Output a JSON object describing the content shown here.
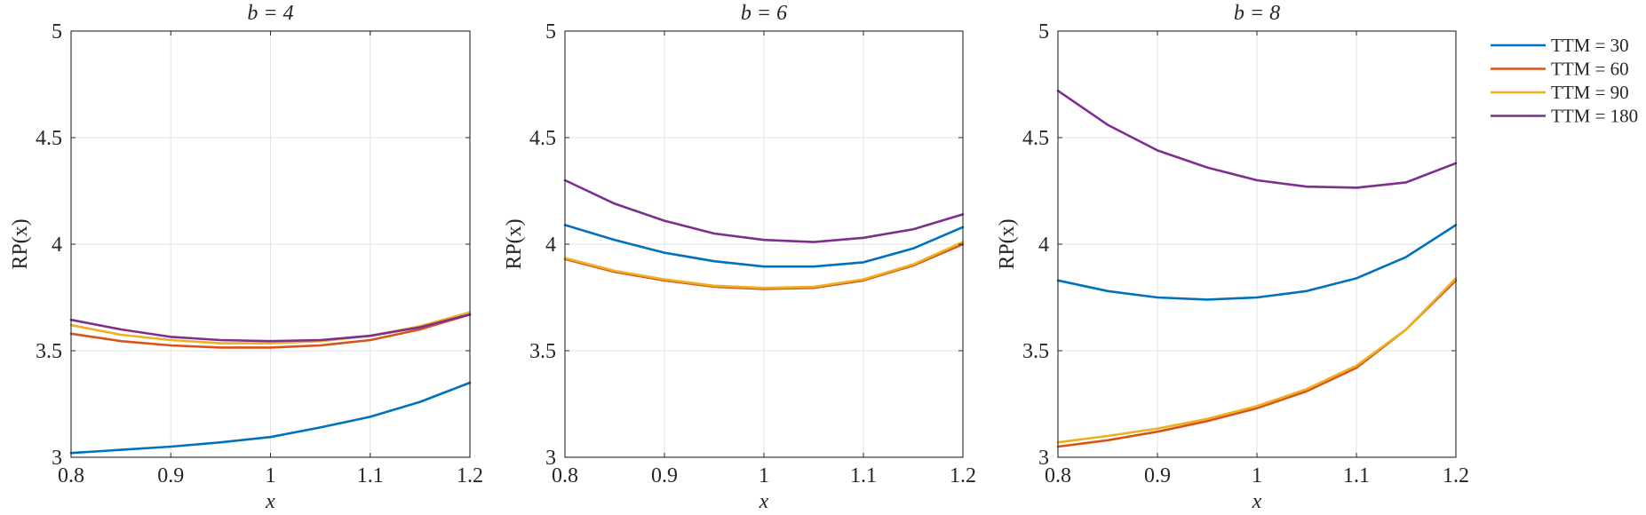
{
  "legend": {
    "entries": [
      {
        "label": "TTM = 30",
        "color": "#0072BD"
      },
      {
        "label": "TTM = 60",
        "color": "#D95319"
      },
      {
        "label": "TTM = 90",
        "color": "#EDB120"
      },
      {
        "label": "TTM = 180",
        "color": "#7E2F8E"
      }
    ],
    "placement": "outside-right-top"
  },
  "chart_data": [
    {
      "type": "line",
      "title": "b = 4",
      "xlabel": "x",
      "ylabel": "RP(x)",
      "xlim": [
        0.8,
        1.2
      ],
      "ylim": [
        3,
        5
      ],
      "xticks": [
        "0.8",
        "0.9",
        "1",
        "1.1",
        "1.2"
      ],
      "yticks": [
        "3",
        "3.5",
        "4",
        "4.5",
        "5"
      ],
      "grid": true,
      "x": [
        0.8,
        0.85,
        0.9,
        0.95,
        1.0,
        1.05,
        1.1,
        1.15,
        1.2
      ],
      "series": [
        {
          "name": "TTM = 30",
          "color": "#0072BD",
          "values": [
            3.02,
            3.035,
            3.05,
            3.07,
            3.095,
            3.14,
            3.19,
            3.26,
            3.35
          ]
        },
        {
          "name": "TTM = 60",
          "color": "#D95319",
          "values": [
            3.58,
            3.545,
            3.525,
            3.515,
            3.515,
            3.525,
            3.55,
            3.6,
            3.67
          ]
        },
        {
          "name": "TTM = 90",
          "color": "#EDB120",
          "values": [
            3.62,
            3.575,
            3.55,
            3.535,
            3.535,
            3.545,
            3.57,
            3.615,
            3.68
          ]
        },
        {
          "name": "TTM = 180",
          "color": "#7E2F8E",
          "values": [
            3.645,
            3.6,
            3.565,
            3.55,
            3.545,
            3.55,
            3.57,
            3.61,
            3.67
          ]
        }
      ]
    },
    {
      "type": "line",
      "title": "b = 6",
      "xlabel": "x",
      "ylabel": "RP(x)",
      "xlim": [
        0.8,
        1.2
      ],
      "ylim": [
        3,
        5
      ],
      "xticks": [
        "0.8",
        "0.9",
        "1",
        "1.1",
        "1.2"
      ],
      "yticks": [
        "3",
        "3.5",
        "4",
        "4.5",
        "5"
      ],
      "grid": true,
      "x": [
        0.8,
        0.85,
        0.9,
        0.95,
        1.0,
        1.05,
        1.1,
        1.15,
        1.2
      ],
      "series": [
        {
          "name": "TTM = 30",
          "color": "#0072BD",
          "values": [
            4.09,
            4.02,
            3.96,
            3.92,
            3.895,
            3.895,
            3.915,
            3.98,
            4.08
          ]
        },
        {
          "name": "TTM = 60",
          "color": "#D95319",
          "values": [
            3.93,
            3.87,
            3.83,
            3.8,
            3.79,
            3.795,
            3.83,
            3.9,
            4.0
          ]
        },
        {
          "name": "TTM = 90",
          "color": "#EDB120",
          "values": [
            3.935,
            3.875,
            3.835,
            3.805,
            3.795,
            3.8,
            3.835,
            3.905,
            4.01
          ]
        },
        {
          "name": "TTM = 180",
          "color": "#7E2F8E",
          "values": [
            4.3,
            4.19,
            4.11,
            4.05,
            4.02,
            4.01,
            4.03,
            4.07,
            4.14
          ]
        }
      ]
    },
    {
      "type": "line",
      "title": "b = 8",
      "xlabel": "x",
      "ylabel": "RP(x)",
      "xlim": [
        0.8,
        1.2
      ],
      "ylim": [
        3,
        5
      ],
      "xticks": [
        "0.8",
        "0.9",
        "1",
        "1.1",
        "1.2"
      ],
      "yticks": [
        "3",
        "3.5",
        "4",
        "4.5",
        "5"
      ],
      "grid": true,
      "x": [
        0.8,
        0.85,
        0.9,
        0.95,
        1.0,
        1.05,
        1.1,
        1.15,
        1.2
      ],
      "series": [
        {
          "name": "TTM = 30",
          "color": "#0072BD",
          "values": [
            3.83,
            3.78,
            3.75,
            3.74,
            3.75,
            3.78,
            3.84,
            3.94,
            4.09
          ]
        },
        {
          "name": "TTM = 60",
          "color": "#D95319",
          "values": [
            3.05,
            3.08,
            3.12,
            3.17,
            3.23,
            3.31,
            3.42,
            3.6,
            3.83
          ]
        },
        {
          "name": "TTM = 90",
          "color": "#EDB120",
          "values": [
            3.07,
            3.1,
            3.135,
            3.18,
            3.24,
            3.32,
            3.43,
            3.6,
            3.84
          ]
        },
        {
          "name": "TTM = 180",
          "color": "#7E2F8E",
          "values": [
            4.72,
            4.56,
            4.44,
            4.36,
            4.3,
            4.27,
            4.265,
            4.29,
            4.38
          ]
        }
      ]
    }
  ]
}
